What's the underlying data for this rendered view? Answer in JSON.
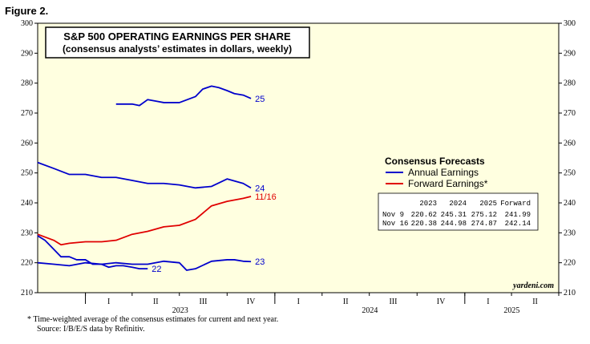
{
  "figure_label": "Figure 2.",
  "chart_data": {
    "type": "line",
    "title": "S&P 500 OPERATING EARNINGS PER SHARE",
    "subtitle": "(consensus analysts’ estimates in dollars, weekly)",
    "ylim": [
      210,
      300
    ],
    "y_ticks": [
      210,
      220,
      230,
      240,
      250,
      260,
      270,
      280,
      290,
      300
    ],
    "x_range": [
      "2022-10-01",
      "2025-07-01"
    ],
    "quarter_labels": [
      "I",
      "II",
      "III",
      "IV",
      "I",
      "II",
      "III",
      "IV",
      "I",
      "II"
    ],
    "year_labels": [
      "2023",
      "2024",
      "2025"
    ],
    "background": "#ffffe0",
    "legend": {
      "title": "Consensus Forecasts",
      "placement": "right",
      "items": [
        {
          "name": "Annual Earnings",
          "color": "#0000cc"
        },
        {
          "name": "Forward Earnings*",
          "color": "#e00000"
        }
      ]
    },
    "table": {
      "headers": [
        "2023",
        "2024",
        "2025",
        "Forward"
      ],
      "rows": [
        {
          "label": "Nov  9",
          "values": [
            "220.62",
            "245.31",
            "275.12",
            "241.99"
          ]
        },
        {
          "label": "Nov 16",
          "values": [
            "220.38",
            "244.98",
            "274.87",
            "242.14"
          ]
        }
      ]
    },
    "series": [
      {
        "name": "22",
        "color": "#0000cc",
        "x": [
          "2022-10-01",
          "2022-10-15",
          "2022-11-01",
          "2022-11-15",
          "2022-12-01",
          "2022-12-15",
          "2023-01-01",
          "2023-01-15",
          "2023-02-01",
          "2023-02-15",
          "2023-03-01",
          "2023-03-15",
          "2023-04-01",
          "2023-04-15",
          "2023-05-01"
        ],
        "y": [
          229.0,
          227.5,
          224.5,
          222.0,
          222.0,
          221.0,
          221.0,
          219.5,
          219.5,
          218.5,
          219.0,
          219.0,
          218.5,
          218.0,
          218.0
        ]
      },
      {
        "name": "23",
        "color": "#0000cc",
        "x": [
          "2022-10-01",
          "2022-11-01",
          "2022-12-01",
          "2023-01-01",
          "2023-02-01",
          "2023-03-01",
          "2023-04-01",
          "2023-05-01",
          "2023-06-01",
          "2023-07-01",
          "2023-07-15",
          "2023-08-01",
          "2023-09-01",
          "2023-10-01",
          "2023-10-15",
          "2023-11-01",
          "2023-11-16"
        ],
        "y": [
          220.0,
          219.5,
          219.0,
          220.0,
          219.5,
          220.0,
          219.5,
          219.5,
          220.5,
          220.0,
          217.5,
          218.0,
          220.5,
          221.0,
          221.0,
          220.5,
          220.38
        ]
      },
      {
        "name": "24",
        "color": "#0000cc",
        "x": [
          "2022-10-01",
          "2022-11-01",
          "2022-12-01",
          "2023-01-01",
          "2023-02-01",
          "2023-03-01",
          "2023-04-01",
          "2023-05-01",
          "2023-06-01",
          "2023-07-01",
          "2023-08-01",
          "2023-09-01",
          "2023-10-01",
          "2023-11-01",
          "2023-11-16"
        ],
        "y": [
          253.5,
          251.5,
          249.5,
          249.5,
          248.5,
          248.5,
          247.5,
          246.5,
          246.5,
          246.0,
          245.0,
          245.5,
          248.0,
          246.5,
          244.98
        ]
      },
      {
        "name": "25",
        "color": "#0000cc",
        "x": [
          "2023-03-01",
          "2023-04-01",
          "2023-04-15",
          "2023-05-01",
          "2023-06-01",
          "2023-06-15",
          "2023-07-01",
          "2023-08-01",
          "2023-08-15",
          "2023-09-01",
          "2023-09-15",
          "2023-10-01",
          "2023-10-15",
          "2023-11-01",
          "2023-11-16"
        ],
        "y": [
          273.0,
          273.0,
          272.5,
          274.5,
          273.5,
          273.5,
          273.5,
          275.5,
          278.0,
          279.0,
          278.5,
          277.5,
          276.5,
          276.0,
          274.87
        ]
      },
      {
        "name": "11/16",
        "color": "#e00000",
        "x": [
          "2022-10-01",
          "2022-11-01",
          "2022-11-15",
          "2022-12-01",
          "2023-01-01",
          "2023-02-01",
          "2023-03-01",
          "2023-04-01",
          "2023-05-01",
          "2023-06-01",
          "2023-07-01",
          "2023-08-01",
          "2023-09-01",
          "2023-10-01",
          "2023-11-01",
          "2023-11-16"
        ],
        "y": [
          229.5,
          227.5,
          226.0,
          226.5,
          227.0,
          227.0,
          227.5,
          229.5,
          230.5,
          232.0,
          232.5,
          234.5,
          239.0,
          240.5,
          241.5,
          242.14
        ]
      }
    ],
    "end_labels": [
      {
        "text": "25",
        "series": "25",
        "color": "#0000cc"
      },
      {
        "text": "24",
        "series": "24",
        "color": "#0000cc"
      },
      {
        "text": "11/16",
        "series": "11/16",
        "color": "#e00000"
      },
      {
        "text": "23",
        "series": "23",
        "color": "#0000cc"
      },
      {
        "text": "22",
        "series": "22",
        "color": "#0000cc"
      }
    ],
    "credit": "yardeni.com"
  },
  "footnotes": [
    "*  Time-weighted average of the consensus estimates for current and next year.",
    "Source: I/B/E/S data by Refinitiv."
  ]
}
